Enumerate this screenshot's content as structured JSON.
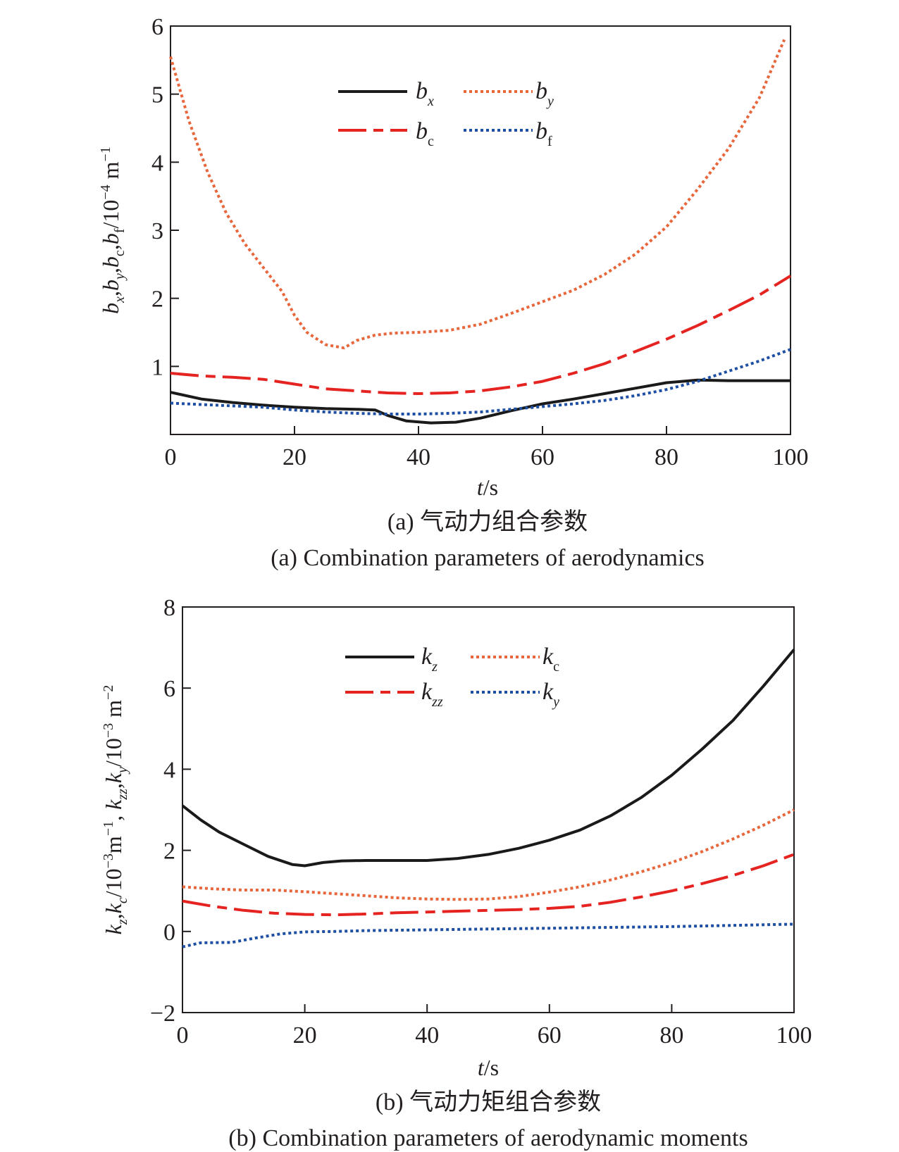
{
  "chart_data": [
    {
      "type": "line",
      "xlabel": "t/s",
      "ylabel": "b_x,b_y,b_c,b_f/10^-4 m^-1",
      "xlim": [
        0,
        100
      ],
      "ylim": [
        0,
        6
      ],
      "xticks": [
        "0",
        "20",
        "40",
        "60",
        "80",
        "100"
      ],
      "yticks": [
        "1",
        "2",
        "3",
        "4",
        "5",
        "6"
      ],
      "caption_cn": "(a) 气动力组合参数",
      "caption_en": "(a) Combination parameters of aerodynamics",
      "legend_position": "top-center",
      "series": [
        {
          "name": "b_x",
          "color": "#1a1a1a",
          "dash": "solid",
          "x": [
            0,
            5,
            10,
            15,
            20,
            25,
            30,
            33,
            35,
            38,
            42,
            46,
            50,
            55,
            60,
            65,
            70,
            75,
            80,
            85,
            90,
            95,
            100
          ],
          "y": [
            0.62,
            0.52,
            0.47,
            0.43,
            0.4,
            0.38,
            0.37,
            0.36,
            0.28,
            0.2,
            0.17,
            0.18,
            0.24,
            0.35,
            0.45,
            0.52,
            0.6,
            0.68,
            0.76,
            0.8,
            0.79,
            0.79,
            0.79
          ]
        },
        {
          "name": "b_y",
          "color": "#e8663c",
          "dash": "dot",
          "x": [
            0,
            3,
            6,
            9,
            12,
            15,
            18,
            20,
            22,
            25,
            28,
            30,
            33,
            36,
            40,
            45,
            50,
            55,
            60,
            65,
            70,
            75,
            80,
            85,
            90,
            95,
            99
          ],
          "y": [
            5.55,
            4.6,
            3.85,
            3.25,
            2.8,
            2.45,
            2.1,
            1.75,
            1.5,
            1.32,
            1.27,
            1.38,
            1.46,
            1.49,
            1.5,
            1.53,
            1.62,
            1.78,
            1.95,
            2.12,
            2.35,
            2.65,
            3.05,
            3.6,
            4.2,
            4.95,
            5.8
          ]
        },
        {
          "name": "b_c",
          "color": "#e52320",
          "dash": "longdash",
          "x": [
            0,
            5,
            10,
            15,
            20,
            25,
            30,
            35,
            40,
            45,
            50,
            55,
            60,
            65,
            70,
            75,
            80,
            85,
            90,
            95,
            100
          ],
          "y": [
            0.9,
            0.86,
            0.84,
            0.81,
            0.74,
            0.67,
            0.64,
            0.61,
            0.6,
            0.61,
            0.64,
            0.7,
            0.78,
            0.9,
            1.04,
            1.22,
            1.4,
            1.6,
            1.82,
            2.05,
            2.33
          ]
        },
        {
          "name": "b_f",
          "color": "#1f4fa3",
          "dash": "dot",
          "x": [
            0,
            5,
            10,
            15,
            20,
            25,
            30,
            35,
            40,
            45,
            50,
            55,
            60,
            65,
            70,
            75,
            80,
            85,
            90,
            95,
            100
          ],
          "y": [
            0.46,
            0.44,
            0.42,
            0.4,
            0.36,
            0.33,
            0.31,
            0.3,
            0.3,
            0.31,
            0.33,
            0.37,
            0.41,
            0.45,
            0.5,
            0.57,
            0.66,
            0.78,
            0.93,
            1.08,
            1.25
          ]
        }
      ]
    },
    {
      "type": "line",
      "xlabel": "t/s",
      "ylabel": "k_z,k_c/10^-3 m^-1, k_zz,k_y/10^-3 m^-2",
      "xlim": [
        0,
        100
      ],
      "ylim": [
        -2,
        8
      ],
      "xticks": [
        "0",
        "20",
        "40",
        "60",
        "80",
        "100"
      ],
      "yticks": [
        "−2",
        "0",
        "2",
        "4",
        "6",
        "8"
      ],
      "caption_cn": "(b) 气动力矩组合参数",
      "caption_en": "(b) Combination parameters of aerodynamic moments",
      "legend_position": "top-center",
      "series": [
        {
          "name": "k_z",
          "color": "#1a1a1a",
          "dash": "solid",
          "x": [
            0,
            3,
            6,
            10,
            14,
            18,
            20,
            23,
            26,
            30,
            35,
            40,
            45,
            50,
            55,
            60,
            65,
            70,
            75,
            80,
            85,
            90,
            95,
            100
          ],
          "y": [
            3.1,
            2.75,
            2.45,
            2.15,
            1.85,
            1.65,
            1.62,
            1.7,
            1.74,
            1.75,
            1.75,
            1.75,
            1.8,
            1.9,
            2.05,
            2.25,
            2.5,
            2.85,
            3.3,
            3.85,
            4.5,
            5.2,
            6.05,
            6.95
          ]
        },
        {
          "name": "k_c",
          "color": "#e8663c",
          "dash": "dot",
          "x": [
            0,
            5,
            10,
            15,
            20,
            25,
            30,
            35,
            40,
            45,
            50,
            55,
            60,
            65,
            70,
            75,
            80,
            85,
            90,
            95,
            100
          ],
          "y": [
            1.1,
            1.05,
            1.02,
            1.02,
            0.98,
            0.93,
            0.88,
            0.83,
            0.8,
            0.79,
            0.8,
            0.86,
            0.97,
            1.1,
            1.27,
            1.47,
            1.7,
            1.97,
            2.28,
            2.62,
            3.0
          ]
        },
        {
          "name": "k_zz",
          "color": "#e52320",
          "dash": "longdash",
          "x": [
            0,
            5,
            10,
            15,
            20,
            25,
            30,
            35,
            40,
            45,
            50,
            55,
            60,
            65,
            70,
            75,
            80,
            85,
            90,
            95,
            100
          ],
          "y": [
            0.75,
            0.62,
            0.52,
            0.45,
            0.42,
            0.41,
            0.43,
            0.46,
            0.48,
            0.5,
            0.52,
            0.54,
            0.57,
            0.62,
            0.72,
            0.85,
            1.0,
            1.18,
            1.38,
            1.62,
            1.9
          ]
        },
        {
          "name": "k_y",
          "color": "#1f4fa3",
          "dash": "dot",
          "x": [
            0,
            3,
            8,
            12,
            16,
            20,
            25,
            30,
            40,
            50,
            60,
            70,
            80,
            90,
            100
          ],
          "y": [
            -0.38,
            -0.28,
            -0.27,
            -0.16,
            -0.06,
            -0.01,
            0.0,
            0.02,
            0.04,
            0.06,
            0.08,
            0.1,
            0.12,
            0.15,
            0.18
          ]
        }
      ]
    }
  ]
}
